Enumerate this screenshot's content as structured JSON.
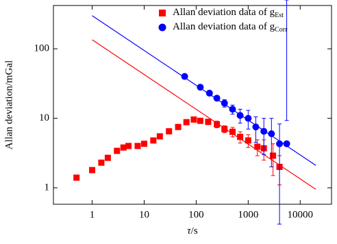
{
  "chart_data": {
    "type": "scatter",
    "xlabel": {
      "symbol": "τ",
      "unit": "/s"
    },
    "ylabel": "Allan deviation/mGal",
    "xscale": "log",
    "yscale": "log",
    "xlim": [
      0.18,
      40000
    ],
    "ylim": [
      0.58,
      420
    ],
    "xticks": [
      1,
      10,
      100,
      1000,
      10000
    ],
    "yticks": [
      1,
      10,
      100
    ],
    "legend": "upper right",
    "series": [
      {
        "name": "Allan deviation data of g",
        "subscript": "Est",
        "marker": "square",
        "color": "#ff0000",
        "x": [
          0.5,
          1,
          1.5,
          2,
          3,
          4,
          5,
          7.5,
          10,
          15,
          20,
          30,
          45,
          65,
          90,
          120,
          170,
          250,
          350,
          500,
          700,
          1000,
          1500,
          2000,
          3000,
          4000
        ],
        "values": [
          1.4,
          1.8,
          2.3,
          2.7,
          3.4,
          3.8,
          4.0,
          4.0,
          4.3,
          4.8,
          5.5,
          6.5,
          7.5,
          8.8,
          9.6,
          9.2,
          8.9,
          8.2,
          7.0,
          6.4,
          5.4,
          4.8,
          3.9,
          3.7,
          2.9,
          2.0
        ],
        "errors": [
          0,
          0,
          0,
          0,
          0,
          0,
          0,
          0,
          0,
          0,
          0,
          0,
          0,
          0,
          0,
          0.6,
          0.8,
          0.9,
          0.8,
          1.0,
          1.0,
          1.0,
          1.0,
          1.2,
          1.4,
          0.9
        ]
      },
      {
        "name": "Allan deviation data of g",
        "subscript": "Corr",
        "marker": "circle",
        "color": "#0000ff",
        "x": [
          60,
          120,
          180,
          250,
          350,
          500,
          700,
          1000,
          1400,
          2000,
          2800,
          4000,
          5500
        ],
        "values": [
          40,
          28,
          23,
          19.5,
          16.5,
          13.5,
          11,
          10,
          7.5,
          6.5,
          6.0,
          4.3,
          4.3
        ],
        "errors": [
          0,
          0,
          0,
          1.5,
          2,
          2,
          2.5,
          3,
          3,
          3.5,
          4,
          4,
          5
        ]
      }
    ],
    "fit_lines": [
      {
        "color": "#ff0000",
        "x": [
          1,
          20000
        ],
        "values": [
          135,
          0.95
        ]
      },
      {
        "color": "#0000ff",
        "x": [
          1,
          20000
        ],
        "values": [
          300,
          2.1
        ]
      }
    ]
  }
}
